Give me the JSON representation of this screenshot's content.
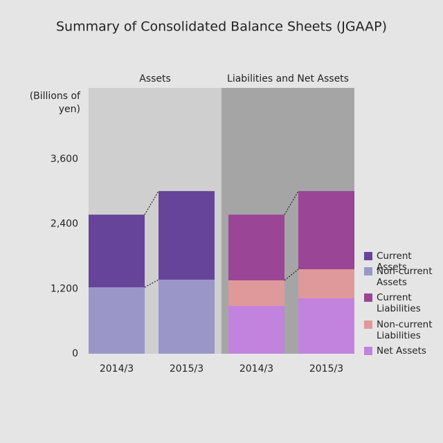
{
  "chart_data": {
    "type": "stacked-bar",
    "title": "Summary of Consolidated Balance Sheets (JGAAP)",
    "y_label": "(Billions of yen)",
    "categories": [
      "2014/3",
      "2015/3"
    ],
    "groups": [
      {
        "name": "Assets",
        "color": "#cfcfcf",
        "series": [
          {
            "name": "Current Assets",
            "color": "#66449a",
            "values": [
              1345,
              1640
            ]
          },
          {
            "name": "Non-current Assets",
            "color": "#9a97c8",
            "values": [
              1229,
              1370
            ]
          }
        ]
      },
      {
        "name": "Liabilities and Net Assets",
        "color": "#a5a5a5",
        "series": [
          {
            "name": "Current Liabilities",
            "color": "#9a4596",
            "values": [
              1216,
              1447
            ]
          },
          {
            "name": "Non-current Liabilities",
            "color": "#e0999a",
            "values": [
              474,
              538
            ]
          },
          {
            "name": "Net Assets",
            "color": "#c183dd",
            "values": [
              884,
              1025
            ]
          }
        ]
      }
    ],
    "ylim": [
      0,
      4920
    ],
    "yticks": [
      0,
      {
        "value": 1200,
        "label": "1,200"
      },
      {
        "value": 2400,
        "label": "2,400"
      },
      {
        "value": 3600,
        "label": "3,600"
      }
    ]
  }
}
